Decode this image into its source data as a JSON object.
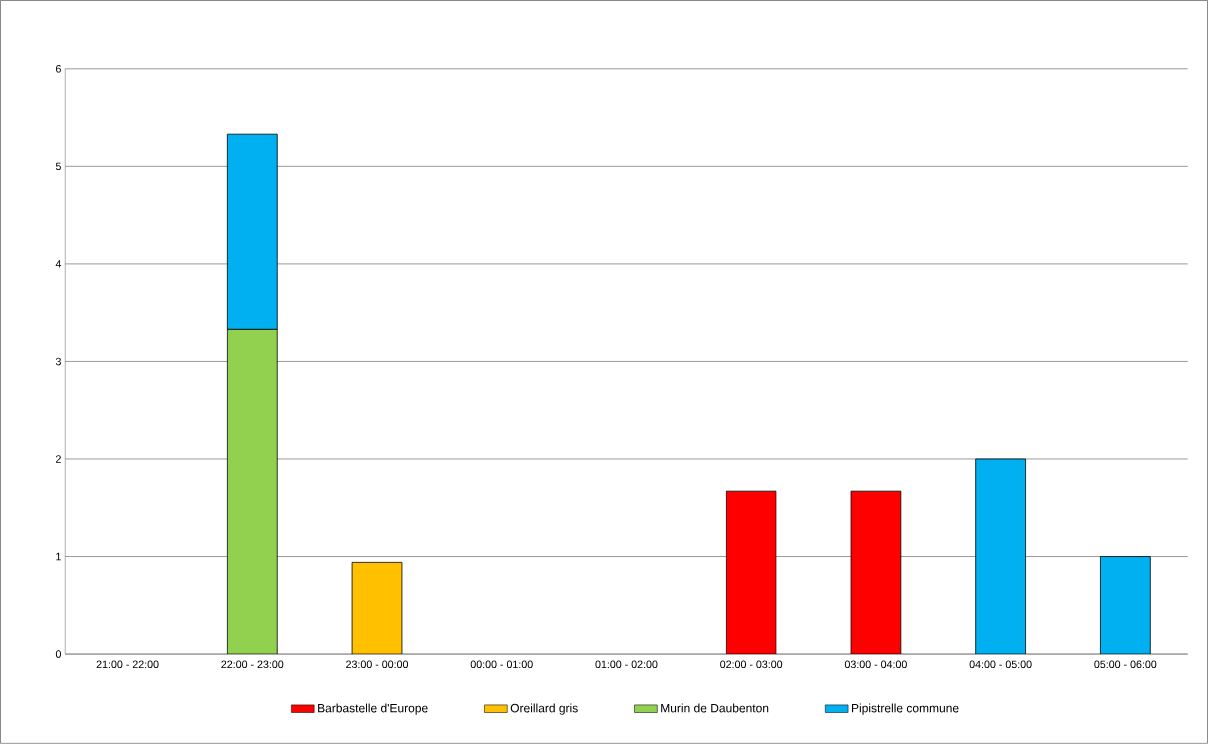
{
  "chart_data": {
    "type": "bar",
    "stacked": true,
    "categories": [
      "21:00 - 22:00",
      "22:00 - 23:00",
      "23:00 - 00:00",
      "00:00 - 01:00",
      "01:00 - 02:00",
      "02:00 - 03:00",
      "03:00 - 04:00",
      "04:00 - 05:00",
      "05:00 - 06:00"
    ],
    "series": [
      {
        "name": "Barbastelle d'Europe",
        "color": "#ff0000",
        "values": [
          null,
          null,
          null,
          null,
          null,
          1.67,
          1.67,
          null,
          null
        ]
      },
      {
        "name": "Oreillard gris",
        "color": "#ffc000",
        "values": [
          null,
          null,
          0.94,
          null,
          null,
          null,
          null,
          null,
          null
        ]
      },
      {
        "name": "Murin de Daubenton",
        "color": "#92d050",
        "values": [
          null,
          3.33,
          null,
          null,
          null,
          null,
          null,
          null,
          null
        ]
      },
      {
        "name": "Pipistrelle commune",
        "color": "#00b0f0",
        "values": [
          null,
          2,
          null,
          null,
          null,
          null,
          null,
          2,
          1
        ]
      }
    ],
    "ylim": [
      0,
      6
    ],
    "yticks": [
      0,
      1,
      2,
      3,
      4,
      5,
      6
    ],
    "grid": "y",
    "legend": "bottom"
  }
}
